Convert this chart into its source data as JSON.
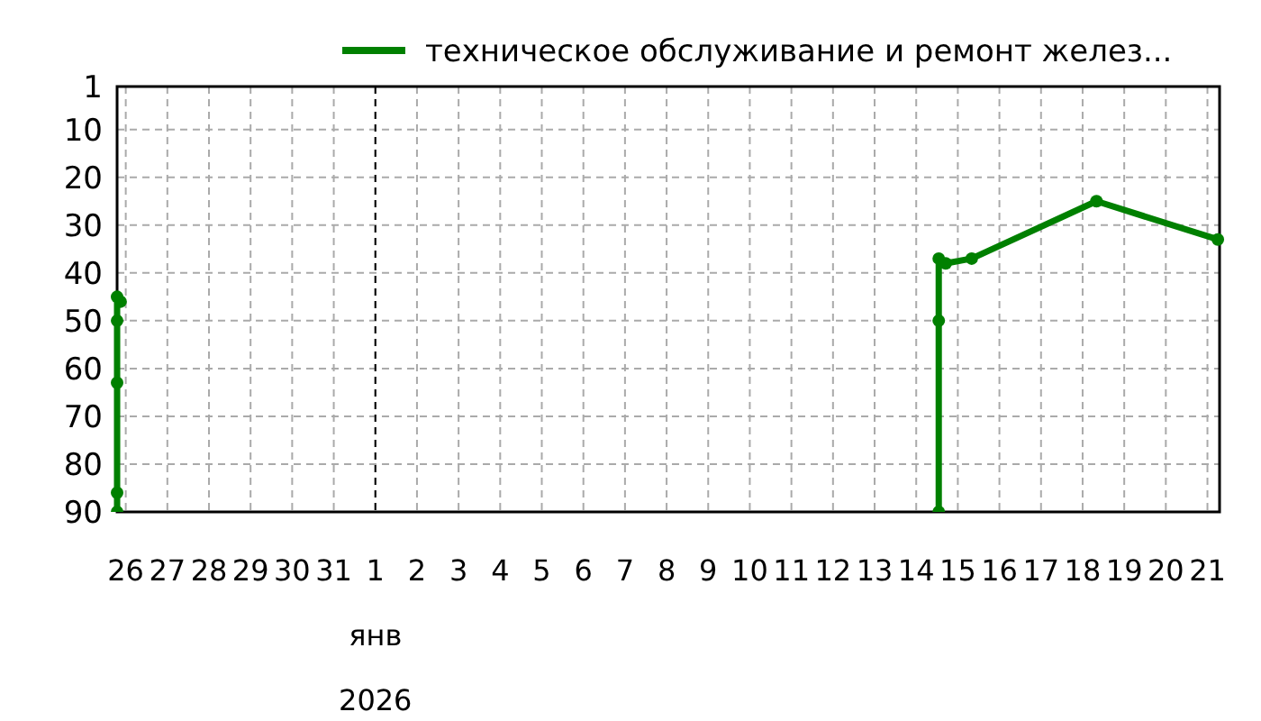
{
  "chart_data": {
    "type": "line",
    "x": [
      "2025-12-25T19:00",
      "2025-12-25T19:00",
      "2025-12-25T19:00",
      "2025-12-25T19:00",
      "2025-12-25T19:00",
      "2025-12-25T21:00",
      "2026-01-01T00:00",
      "2026-01-14T13:00",
      "2026-01-14T13:00",
      "2026-01-14T13:00",
      "2026-01-14T17:00",
      "2026-01-15T08:00",
      "2026-01-18T08:00",
      "2026-01-21T06:00"
    ],
    "series": [
      {
        "name": "техническое обслуживание и ремонт желез...",
        "color": "#008000",
        "values": [
          90,
          86,
          63,
          50,
          45,
          46,
          null,
          90,
          50,
          37,
          38,
          37,
          25,
          33
        ]
      }
    ],
    "xlim": [
      "2025-12-25T19:00",
      "2026-01-21T07:00"
    ],
    "xticks": [
      {
        "value": "2025-12-26",
        "label": "26"
      },
      {
        "value": "2025-12-27",
        "label": "27"
      },
      {
        "value": "2025-12-28",
        "label": "28"
      },
      {
        "value": "2025-12-29",
        "label": "29"
      },
      {
        "value": "2025-12-30",
        "label": "30"
      },
      {
        "value": "2025-12-31",
        "label": "31"
      },
      {
        "value": "2026-01-01",
        "label": "1"
      },
      {
        "value": "2026-01-02",
        "label": "2"
      },
      {
        "value": "2026-01-03",
        "label": "3"
      },
      {
        "value": "2026-01-04",
        "label": "4"
      },
      {
        "value": "2026-01-05",
        "label": "5"
      },
      {
        "value": "2026-01-06",
        "label": "6"
      },
      {
        "value": "2026-01-07",
        "label": "7"
      },
      {
        "value": "2026-01-08",
        "label": "8"
      },
      {
        "value": "2026-01-09",
        "label": "9"
      },
      {
        "value": "2026-01-10",
        "label": "10"
      },
      {
        "value": "2026-01-11",
        "label": "11"
      },
      {
        "value": "2026-01-12",
        "label": "12"
      },
      {
        "value": "2026-01-13",
        "label": "13"
      },
      {
        "value": "2026-01-14",
        "label": "14"
      },
      {
        "value": "2026-01-15",
        "label": "15"
      },
      {
        "value": "2026-01-16",
        "label": "16"
      },
      {
        "value": "2026-01-17",
        "label": "17"
      },
      {
        "value": "2026-01-18",
        "label": "18"
      },
      {
        "value": "2026-01-19",
        "label": "19"
      },
      {
        "value": "2026-01-20",
        "label": "20"
      },
      {
        "value": "2026-01-21",
        "label": "21"
      }
    ],
    "ylim": [
      90,
      1
    ],
    "yticks": [
      1,
      10,
      20,
      30,
      40,
      50,
      60,
      70,
      80,
      90
    ],
    "ref_lines": [
      {
        "axis": "x",
        "value": "2026-01-01",
        "color": "#000000",
        "line_style": "dashed"
      }
    ],
    "annotations": [
      "янв",
      "2026"
    ],
    "grid": true,
    "legend": "top",
    "marker": "circle",
    "line_style": "solid"
  }
}
